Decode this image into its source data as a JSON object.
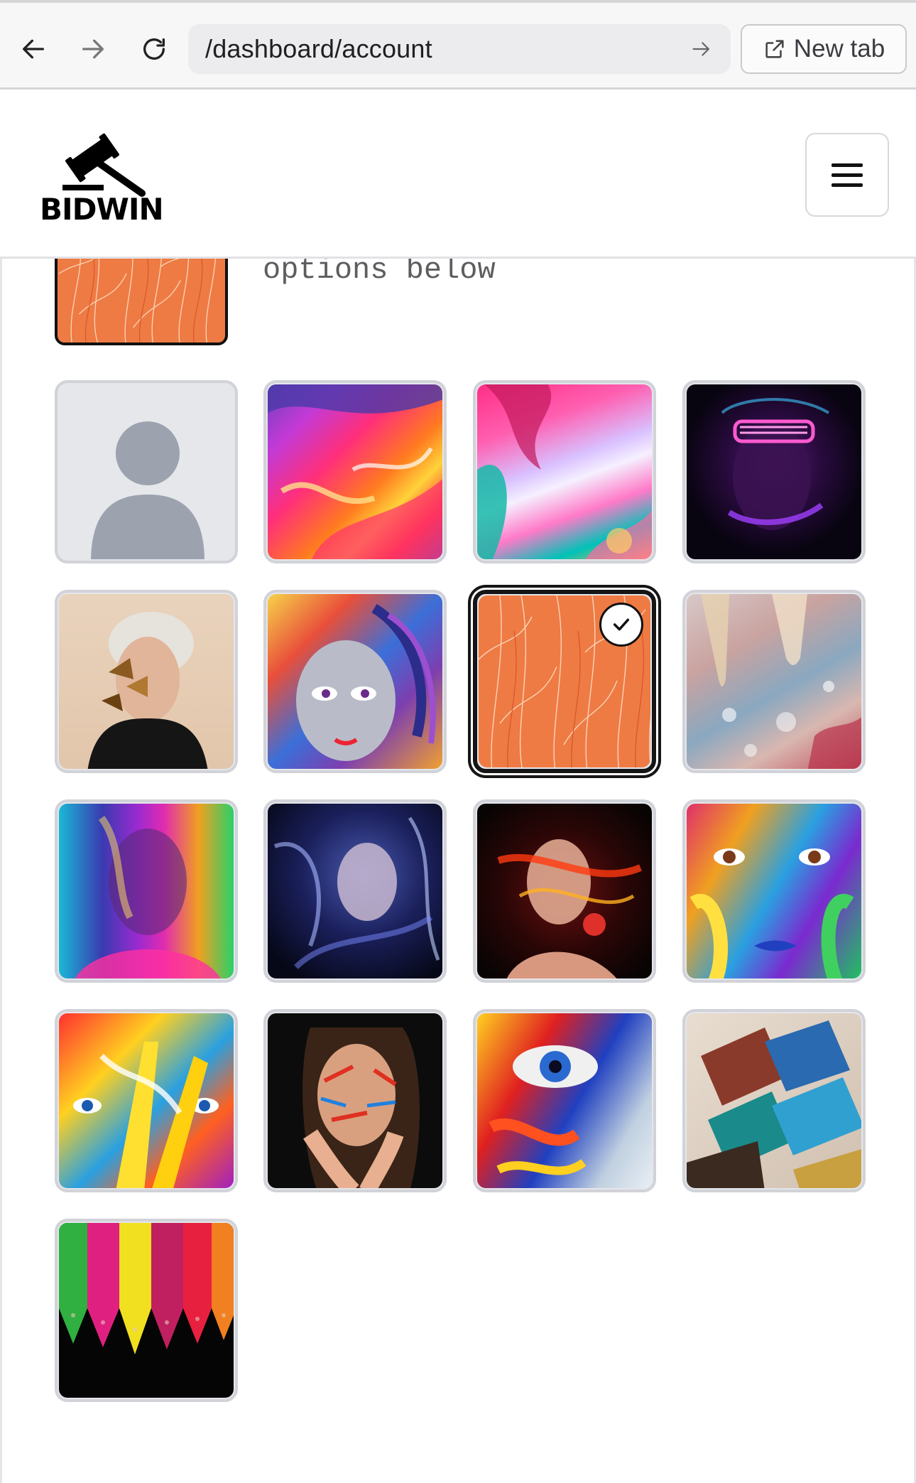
{
  "browser": {
    "url": "/dashboard/account",
    "new_tab_label": "New tab"
  },
  "header": {
    "logo_text": "BIDWIN"
  },
  "avatar_picker": {
    "hint_text": "options below",
    "selected_index": 6,
    "options": [
      {
        "name": "default-avatar",
        "icon": "person-silhouette-icon"
      },
      {
        "name": "abstract-paint-splash"
      },
      {
        "name": "alcohol-ink-swirl"
      },
      {
        "name": "neon-glasses-portrait"
      },
      {
        "name": "butterfly-face-portrait"
      },
      {
        "name": "graffiti-face"
      },
      {
        "name": "orange-leaf-pattern"
      },
      {
        "name": "melting-paint-drips"
      },
      {
        "name": "rainbow-blur-portrait"
      },
      {
        "name": "blue-smoke-portrait"
      },
      {
        "name": "red-light-portrait"
      },
      {
        "name": "painted-face-closeup"
      },
      {
        "name": "paint-covered-hand"
      },
      {
        "name": "face-paint-woman"
      },
      {
        "name": "painted-eye-closeup"
      },
      {
        "name": "paint-brushes"
      },
      {
        "name": "colored-pencils"
      }
    ]
  }
}
